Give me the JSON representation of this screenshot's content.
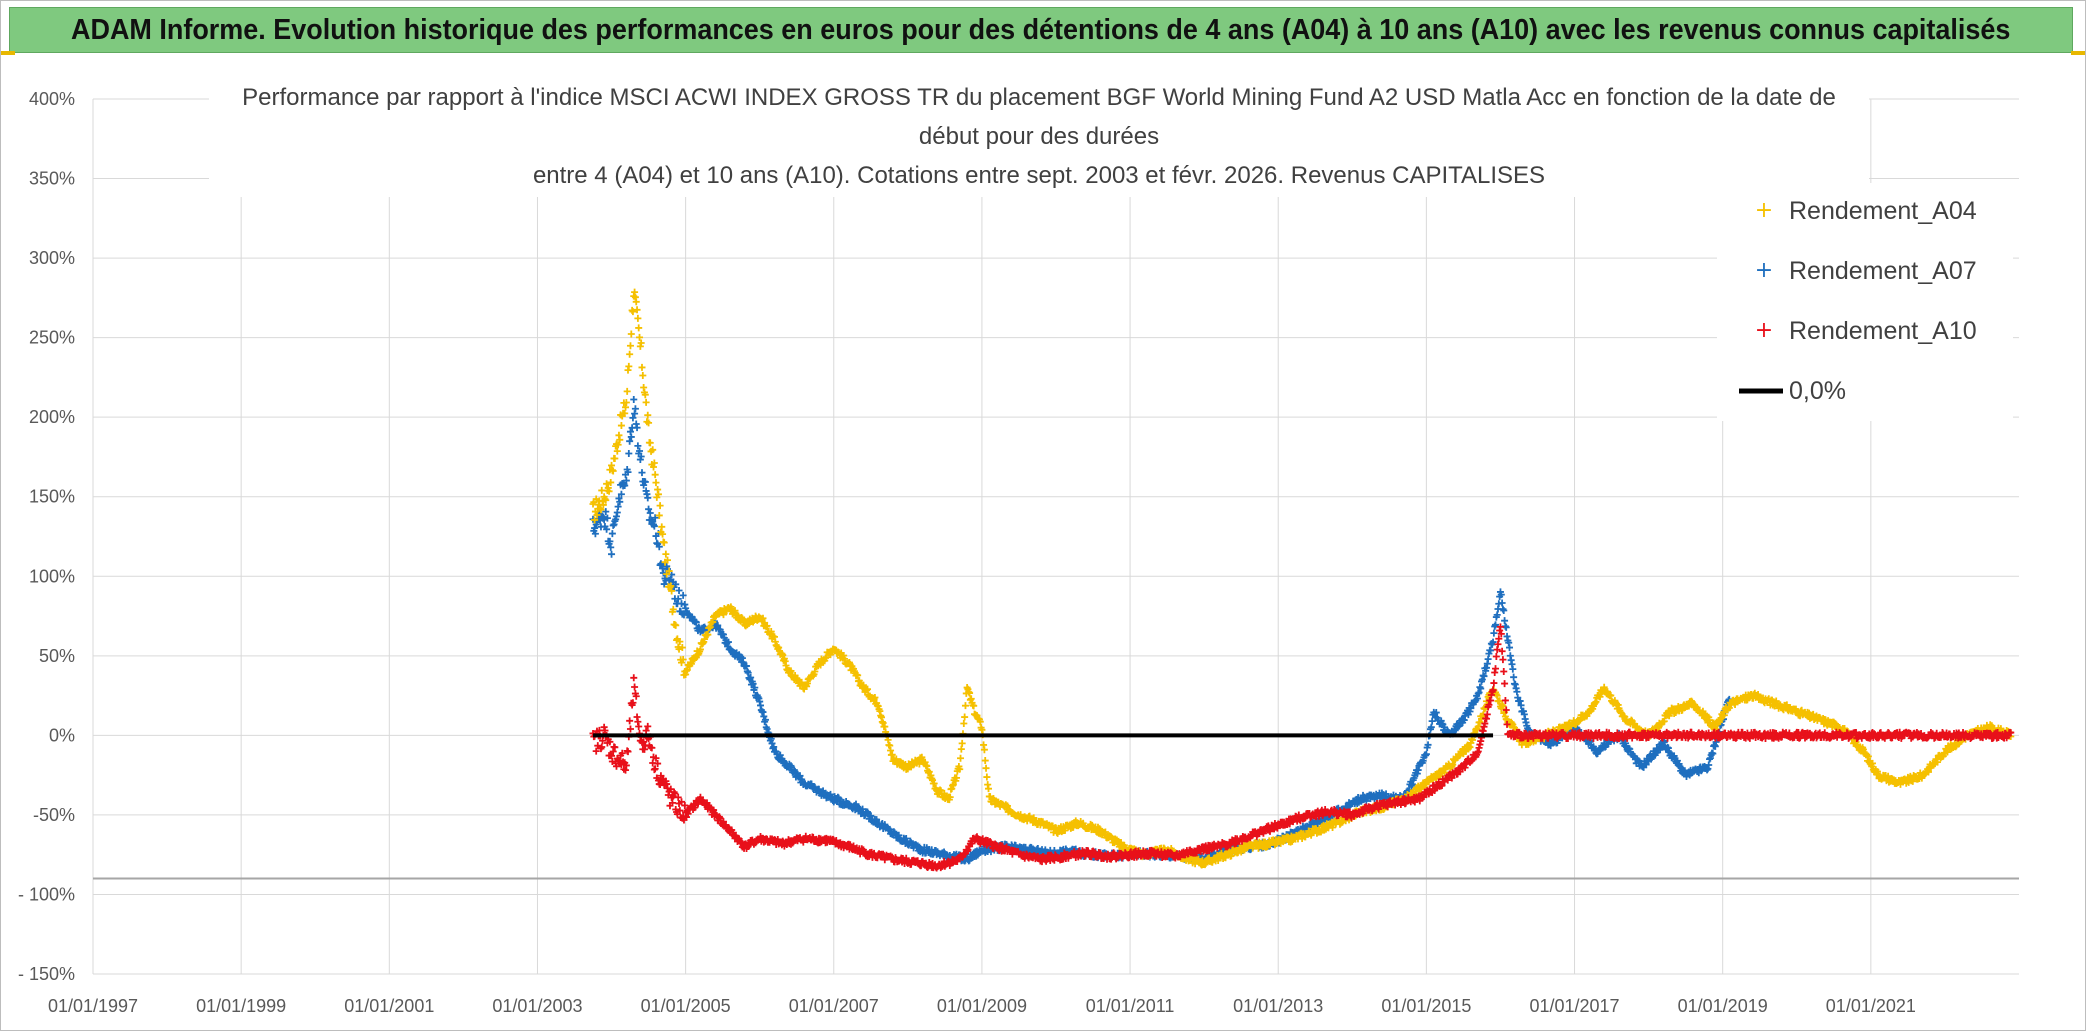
{
  "banner": {
    "title": "ADAM Informe. Evolution historique des performances en euros pour des détentions de 4 ans (A04) à 10 ans (A10) avec les revenus connus capitalisés"
  },
  "chart_data": {
    "type": "scatter",
    "title_lines": [
      "Performance par rapport à l'indice MSCI ACWI INDEX GROSS TR  du placement BGF World Mining Fund A2 USD Matla Acc en fonction de la date de",
      "début pour des durées",
      "entre 4 (A04) et 10 ans (A10). Cotations entre sept. 2003 et févr. 2026. Revenus CAPITALISES"
    ],
    "xlabel": "",
    "ylabel": "",
    "xlim": [
      1997.0,
      2023.0
    ],
    "ylim": [
      -150,
      400
    ],
    "y_ticks": [
      {
        "value": 400,
        "label": "400%"
      },
      {
        "value": 350,
        "label": "350%"
      },
      {
        "value": 300,
        "label": "300%"
      },
      {
        "value": 250,
        "label": "250%"
      },
      {
        "value": 200,
        "label": "200%"
      },
      {
        "value": 150,
        "label": "150%"
      },
      {
        "value": 100,
        "label": "100%"
      },
      {
        "value": 50,
        "label": "50%"
      },
      {
        "value": 0,
        "label": "0%"
      },
      {
        "value": -50,
        "label": "-50%"
      },
      {
        "value": -100,
        "label": "- 100%"
      },
      {
        "value": -150,
        "label": "- 150%"
      }
    ],
    "x_ticks": [
      {
        "value": 1997,
        "label": "01/01/1997"
      },
      {
        "value": 1999,
        "label": "01/01/1999"
      },
      {
        "value": 2001,
        "label": "01/01/2001"
      },
      {
        "value": 2003,
        "label": "01/01/2003"
      },
      {
        "value": 2005,
        "label": "01/01/2005"
      },
      {
        "value": 2007,
        "label": "01/01/2007"
      },
      {
        "value": 2009,
        "label": "01/01/2009"
      },
      {
        "value": 2011,
        "label": "01/01/2011"
      },
      {
        "value": 2013,
        "label": "01/01/2013"
      },
      {
        "value": 2015,
        "label": "01/01/2015"
      },
      {
        "value": 2017,
        "label": "01/01/2017"
      },
      {
        "value": 2019,
        "label": "01/01/2019"
      },
      {
        "value": 2021,
        "label": "01/01/2021"
      }
    ],
    "grid": true,
    "legend_position": "top-right",
    "series": [
      {
        "name": "Rendement_A04",
        "color": "#f5c000",
        "marker": "plus",
        "x": [
          2003.75,
          2003.9,
          2004.0,
          2004.1,
          2004.2,
          2004.3,
          2004.4,
          2004.5,
          2004.6,
          2004.7,
          2004.8,
          2004.9,
          2005.0,
          2005.2,
          2005.4,
          2005.6,
          2005.8,
          2006.0,
          2006.2,
          2006.4,
          2006.6,
          2006.8,
          2007.0,
          2007.2,
          2007.4,
          2007.6,
          2007.8,
          2008.0,
          2008.2,
          2008.4,
          2008.55,
          2008.7,
          2008.8,
          2008.9,
          2009.0,
          2009.1,
          2009.3,
          2009.5,
          2009.8,
          2010.0,
          2010.3,
          2010.6,
          2010.9,
          2011.2,
          2011.5,
          2011.8,
          2012.0,
          2012.3,
          2012.6,
          2012.9,
          2013.2,
          2013.5,
          2013.8,
          2014.1,
          2014.4,
          2014.7,
          2015.0,
          2015.3,
          2015.6,
          2015.9,
          2016.1,
          2016.3,
          2016.6,
          2016.9,
          2017.2,
          2017.4,
          2017.7,
          2018.0,
          2018.3,
          2018.6,
          2018.9,
          2019.1,
          2019.4,
          2019.7,
          2020.0,
          2020.3,
          2020.6,
          2020.9,
          2021.1,
          2021.4,
          2021.7,
          2022.0,
          2022.3,
          2022.6,
          2022.9
        ],
        "y": [
          140,
          150,
          165,
          190,
          210,
          280,
          240,
          190,
          160,
          120,
          90,
          60,
          40,
          55,
          75,
          80,
          70,
          75,
          60,
          40,
          30,
          45,
          55,
          45,
          30,
          20,
          -15,
          -20,
          -15,
          -35,
          -40,
          -20,
          30,
          15,
          5,
          -40,
          -45,
          -50,
          -55,
          -60,
          -55,
          -60,
          -70,
          -75,
          -72,
          -78,
          -80,
          -75,
          -70,
          -68,
          -65,
          -60,
          -55,
          -48,
          -45,
          -40,
          -30,
          -20,
          -5,
          30,
          10,
          -5,
          0,
          5,
          15,
          30,
          10,
          0,
          15,
          20,
          5,
          20,
          25,
          20,
          15,
          10,
          5,
          -10,
          -25,
          -30,
          -25,
          -10,
          0,
          5,
          0
        ]
      },
      {
        "name": "Rendement_A07",
        "color": "#1f6fbf",
        "marker": "plus",
        "x": [
          2003.75,
          2003.9,
          2004.0,
          2004.1,
          2004.2,
          2004.3,
          2004.4,
          2004.5,
          2004.6,
          2004.7,
          2004.8,
          2004.9,
          2005.0,
          2005.2,
          2005.4,
          2005.6,
          2005.8,
          2006.0,
          2006.2,
          2006.4,
          2006.6,
          2006.8,
          2007.0,
          2007.3,
          2007.6,
          2007.9,
          2008.2,
          2008.5,
          2008.8,
          2009.0,
          2009.3,
          2009.6,
          2009.9,
          2010.2,
          2010.5,
          2010.8,
          2011.1,
          2011.4,
          2011.7,
          2012.0,
          2012.3,
          2012.6,
          2012.9,
          2013.2,
          2013.5,
          2013.8,
          2014.1,
          2014.4,
          2014.7,
          2015.0,
          2015.1,
          2015.3,
          2015.5,
          2015.7,
          2015.9,
          2016.0,
          2016.2,
          2016.4,
          2016.7,
          2017.0,
          2017.3,
          2017.6,
          2017.9,
          2018.2,
          2018.5,
          2018.8,
          2019.0,
          2019.1
        ],
        "y": [
          130,
          140,
          120,
          150,
          160,
          210,
          170,
          140,
          130,
          100,
          100,
          85,
          80,
          65,
          70,
          55,
          45,
          20,
          -10,
          -20,
          -30,
          -35,
          -40,
          -45,
          -55,
          -65,
          -72,
          -75,
          -78,
          -72,
          -70,
          -72,
          -74,
          -73,
          -75,
          -76,
          -74,
          -75,
          -76,
          -78,
          -72,
          -70,
          -68,
          -62,
          -55,
          -48,
          -40,
          -38,
          -40,
          -10,
          15,
          0,
          10,
          25,
          60,
          90,
          30,
          0,
          -5,
          5,
          -10,
          0,
          -20,
          -5,
          -25,
          -20,
          10,
          25
        ]
      },
      {
        "name": "Rendement_A10",
        "color": "#e8101a",
        "marker": "plus",
        "x": [
          2003.75,
          2003.9,
          2004.0,
          2004.1,
          2004.2,
          2004.3,
          2004.4,
          2004.5,
          2004.6,
          2004.7,
          2004.8,
          2004.9,
          2005.0,
          2005.2,
          2005.4,
          2005.6,
          2005.8,
          2006.0,
          2006.3,
          2006.6,
          2006.9,
          2007.2,
          2007.5,
          2007.8,
          2008.1,
          2008.4,
          2008.7,
          2008.9,
          2009.2,
          2009.5,
          2009.8,
          2010.1,
          2010.4,
          2010.7,
          2011.0,
          2011.3,
          2011.6,
          2011.9,
          2012.2,
          2012.5,
          2012.8,
          2013.1,
          2013.4,
          2013.7,
          2014.0,
          2014.3,
          2014.6,
          2014.9,
          2015.2,
          2015.5,
          2015.7,
          2015.9,
          2016.0,
          2016.1,
          2016.5,
          2017.0,
          2017.5,
          2018.0,
          2018.5,
          2019.0,
          2019.5,
          2020.0,
          2020.5,
          2021.0,
          2021.5,
          2022.0,
          2022.5,
          2022.9
        ],
        "y": [
          -5,
          0,
          -10,
          -15,
          -20,
          30,
          -5,
          0,
          -20,
          -30,
          -40,
          -45,
          -50,
          -40,
          -50,
          -60,
          -70,
          -65,
          -68,
          -65,
          -66,
          -70,
          -75,
          -78,
          -80,
          -82,
          -78,
          -65,
          -70,
          -75,
          -78,
          -76,
          -74,
          -76,
          -75,
          -74,
          -76,
          -72,
          -70,
          -65,
          -60,
          -55,
          -50,
          -48,
          -50,
          -45,
          -42,
          -40,
          -30,
          -20,
          -10,
          30,
          70,
          0,
          0,
          0,
          0,
          0,
          0,
          0,
          0,
          0,
          0,
          0,
          0,
          0,
          0,
          0
        ]
      },
      {
        "name": "0,0%",
        "color": "#000000",
        "marker": "line",
        "x": [
          2003.75,
          2015.9
        ],
        "y": [
          0,
          0
        ]
      }
    ]
  }
}
